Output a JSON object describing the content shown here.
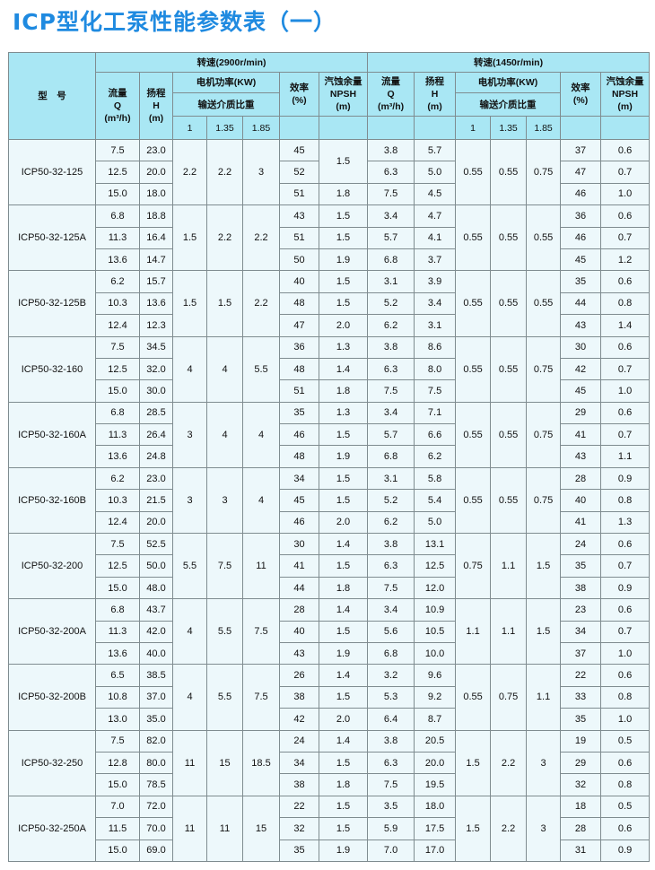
{
  "title": "ICP型化工泵性能参数表（一）",
  "header": {
    "model": "型　号",
    "speed_high": "转速(2900r/min)",
    "speed_low": "转速(1450r/min)",
    "flow": "流量",
    "flow_sym": "Q",
    "flow_unit": "(m³/h)",
    "head": "扬程",
    "head_sym": "H",
    "head_unit": "(m)",
    "power": "电机功率(KW)",
    "gravity": "输送介质比重",
    "gravity_values": [
      "1",
      "1.35",
      "1.85"
    ],
    "efficiency": "效率",
    "efficiency_unit": "(%)",
    "npsh_cn": "汽蚀余量",
    "npsh": "NPSH",
    "npsh_unit": "(m)"
  },
  "groups": [
    {
      "model": "ICP50-32-125",
      "p1": [
        "2.2",
        "2.2",
        "3"
      ],
      "p2": [
        "0.55",
        "0.55",
        "0.75"
      ],
      "npsh_merge": "1.5",
      "rows": [
        [
          "7.5",
          "23.0",
          "45",
          "",
          "3.8",
          "5.7",
          "37",
          "0.6"
        ],
        [
          "12.5",
          "20.0",
          "52",
          "",
          "6.3",
          "5.0",
          "47",
          "0.7"
        ],
        [
          "15.0",
          "18.0",
          "51",
          "1.8",
          "7.5",
          "4.5",
          "46",
          "1.0"
        ]
      ]
    },
    {
      "model": "ICP50-32-125A",
      "p1": [
        "1.5",
        "2.2",
        "2.2"
      ],
      "p2": [
        "0.55",
        "0.55",
        "0.55"
      ],
      "rows": [
        [
          "6.8",
          "18.8",
          "43",
          "1.5",
          "3.4",
          "4.7",
          "36",
          "0.6"
        ],
        [
          "11.3",
          "16.4",
          "51",
          "1.5",
          "5.7",
          "4.1",
          "46",
          "0.7"
        ],
        [
          "13.6",
          "14.7",
          "50",
          "1.9",
          "6.8",
          "3.7",
          "45",
          "1.2"
        ]
      ]
    },
    {
      "model": "ICP50-32-125B",
      "p1": [
        "1.5",
        "1.5",
        "2.2"
      ],
      "p2": [
        "0.55",
        "0.55",
        "0.55"
      ],
      "rows": [
        [
          "6.2",
          "15.7",
          "40",
          "1.5",
          "3.1",
          "3.9",
          "35",
          "0.6"
        ],
        [
          "10.3",
          "13.6",
          "48",
          "1.5",
          "5.2",
          "3.4",
          "44",
          "0.8"
        ],
        [
          "12.4",
          "12.3",
          "47",
          "2.0",
          "6.2",
          "3.1",
          "43",
          "1.4"
        ]
      ]
    },
    {
      "model": "ICP50-32-160",
      "p1": [
        "4",
        "4",
        "5.5"
      ],
      "p2": [
        "0.55",
        "0.55",
        "0.75"
      ],
      "rows": [
        [
          "7.5",
          "34.5",
          "36",
          "1.3",
          "3.8",
          "8.6",
          "30",
          "0.6"
        ],
        [
          "12.5",
          "32.0",
          "48",
          "1.4",
          "6.3",
          "8.0",
          "42",
          "0.7"
        ],
        [
          "15.0",
          "30.0",
          "51",
          "1.8",
          "7.5",
          "7.5",
          "45",
          "1.0"
        ]
      ]
    },
    {
      "model": "ICP50-32-160A",
      "p1": [
        "3",
        "4",
        "4"
      ],
      "p2": [
        "0.55",
        "0.55",
        "0.75"
      ],
      "rows": [
        [
          "6.8",
          "28.5",
          "35",
          "1.3",
          "3.4",
          "7.1",
          "29",
          "0.6"
        ],
        [
          "11.3",
          "26.4",
          "46",
          "1.5",
          "5.7",
          "6.6",
          "41",
          "0.7"
        ],
        [
          "13.6",
          "24.8",
          "48",
          "1.9",
          "6.8",
          "6.2",
          "43",
          "1.1"
        ]
      ]
    },
    {
      "model": "ICP50-32-160B",
      "p1": [
        "3",
        "3",
        "4"
      ],
      "p2": [
        "0.55",
        "0.55",
        "0.75"
      ],
      "rows": [
        [
          "6.2",
          "23.0",
          "34",
          "1.5",
          "3.1",
          "5.8",
          "28",
          "0.9"
        ],
        [
          "10.3",
          "21.5",
          "45",
          "1.5",
          "5.2",
          "5.4",
          "40",
          "0.8"
        ],
        [
          "12.4",
          "20.0",
          "46",
          "2.0",
          "6.2",
          "5.0",
          "41",
          "1.3"
        ]
      ]
    },
    {
      "model": "ICP50-32-200",
      "p1": [
        "5.5",
        "7.5",
        "11"
      ],
      "p2": [
        "0.75",
        "1.1",
        "1.5"
      ],
      "rows": [
        [
          "7.5",
          "52.5",
          "30",
          "1.4",
          "3.8",
          "13.1",
          "24",
          "0.6"
        ],
        [
          "12.5",
          "50.0",
          "41",
          "1.5",
          "6.3",
          "12.5",
          "35",
          "0.7"
        ],
        [
          "15.0",
          "48.0",
          "44",
          "1.8",
          "7.5",
          "12.0",
          "38",
          "0.9"
        ]
      ]
    },
    {
      "model": "ICP50-32-200A",
      "p1": [
        "4",
        "5.5",
        "7.5"
      ],
      "p2": [
        "1.1",
        "1.1",
        "1.5"
      ],
      "rows": [
        [
          "6.8",
          "43.7",
          "28",
          "1.4",
          "3.4",
          "10.9",
          "23",
          "0.6"
        ],
        [
          "11.3",
          "42.0",
          "40",
          "1.5",
          "5.6",
          "10.5",
          "34",
          "0.7"
        ],
        [
          "13.6",
          "40.0",
          "43",
          "1.9",
          "6.8",
          "10.0",
          "37",
          "1.0"
        ]
      ]
    },
    {
      "model": "ICP50-32-200B",
      "p1": [
        "4",
        "5.5",
        "7.5"
      ],
      "p2": [
        "0.55",
        "0.75",
        "1.1"
      ],
      "rows": [
        [
          "6.5",
          "38.5",
          "26",
          "1.4",
          "3.2",
          "9.6",
          "22",
          "0.6"
        ],
        [
          "10.8",
          "37.0",
          "38",
          "1.5",
          "5.3",
          "9.2",
          "33",
          "0.8"
        ],
        [
          "13.0",
          "35.0",
          "42",
          "2.0",
          "6.4",
          "8.7",
          "35",
          "1.0"
        ]
      ]
    },
    {
      "model": "ICP50-32-250",
      "p1": [
        "11",
        "15",
        "18.5"
      ],
      "p2": [
        "1.5",
        "2.2",
        "3"
      ],
      "rows": [
        [
          "7.5",
          "82.0",
          "24",
          "1.4",
          "3.8",
          "20.5",
          "19",
          "0.5"
        ],
        [
          "12.8",
          "80.0",
          "34",
          "1.5",
          "6.3",
          "20.0",
          "29",
          "0.6"
        ],
        [
          "15.0",
          "78.5",
          "38",
          "1.8",
          "7.5",
          "19.5",
          "32",
          "0.8"
        ]
      ]
    },
    {
      "model": "ICP50-32-250A",
      "p1": [
        "11",
        "11",
        "15"
      ],
      "p2": [
        "1.5",
        "2.2",
        "3"
      ],
      "rows": [
        [
          "7.0",
          "72.0",
          "22",
          "1.5",
          "3.5",
          "18.0",
          "18",
          "0.5"
        ],
        [
          "11.5",
          "70.0",
          "32",
          "1.5",
          "5.9",
          "17.5",
          "28",
          "0.6"
        ],
        [
          "15.0",
          "69.0",
          "35",
          "1.9",
          "7.0",
          "17.0",
          "31",
          "0.9"
        ]
      ]
    }
  ]
}
